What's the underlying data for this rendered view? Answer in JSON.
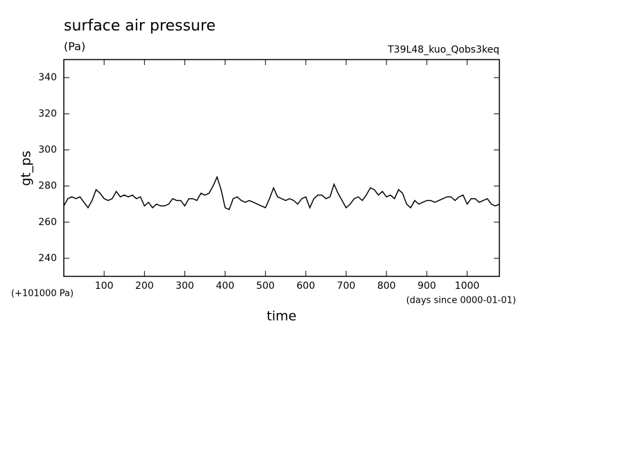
{
  "chart_data": {
    "type": "line",
    "title": "surface air pressure",
    "units": "(Pa)",
    "run_name": "T39L48_kuo_Qobs3keq",
    "y_offset_label": "(+101000 Pa)",
    "x_unit_label": "(days since 0000-01-01)",
    "x_label": "time",
    "y_label": "gt_ps",
    "color": "#000000",
    "x": [
      0,
      10,
      20,
      30,
      40,
      50,
      60,
      70,
      80,
      90,
      100,
      110,
      120,
      130,
      140,
      150,
      160,
      170,
      180,
      190,
      200,
      210,
      220,
      230,
      240,
      250,
      260,
      270,
      280,
      290,
      300,
      310,
      320,
      330,
      340,
      350,
      360,
      370,
      380,
      390,
      400,
      410,
      420,
      430,
      440,
      450,
      460,
      470,
      480,
      490,
      500,
      510,
      520,
      530,
      540,
      550,
      560,
      570,
      580,
      590,
      600,
      610,
      620,
      630,
      640,
      650,
      660,
      670,
      680,
      690,
      700,
      710,
      720,
      730,
      740,
      750,
      760,
      770,
      780,
      790,
      800,
      810,
      820,
      830,
      840,
      850,
      860,
      870,
      880,
      890,
      900,
      910,
      920,
      930,
      940,
      950,
      960,
      970,
      980,
      990,
      1000,
      1010,
      1020,
      1030,
      1040,
      1050,
      1060,
      1070,
      1080
    ],
    "values": [
      269,
      273,
      274,
      273,
      274,
      271,
      268,
      272,
      278,
      276,
      273,
      272,
      273,
      277,
      274,
      275,
      274,
      275,
      273,
      274,
      269,
      271,
      268,
      270,
      269,
      269,
      270,
      273,
      272,
      272,
      269,
      273,
      273,
      272,
      276,
      275,
      276,
      280,
      285,
      278,
      268,
      267,
      273,
      274,
      272,
      271,
      272,
      271,
      270,
      269,
      268,
      273,
      279,
      274,
      273,
      272,
      273,
      272,
      270,
      273,
      274,
      268,
      273,
      275,
      275,
      273,
      274,
      281,
      276,
      272,
      268,
      270,
      273,
      274,
      272,
      275,
      279,
      278,
      275,
      277,
      274,
      275,
      273,
      278,
      276,
      270,
      268,
      272,
      270,
      271,
      272,
      272,
      271,
      272,
      273,
      274,
      274,
      272,
      274,
      275,
      270,
      273,
      273,
      271,
      272,
      273,
      270,
      269,
      270
    ],
    "xlim": [
      0,
      1080
    ],
    "ylim": [
      230,
      350
    ],
    "xticks": [
      100,
      200,
      300,
      400,
      500,
      600,
      700,
      800,
      900,
      1000
    ],
    "yticks": [
      240,
      260,
      280,
      300,
      320,
      340
    ]
  }
}
